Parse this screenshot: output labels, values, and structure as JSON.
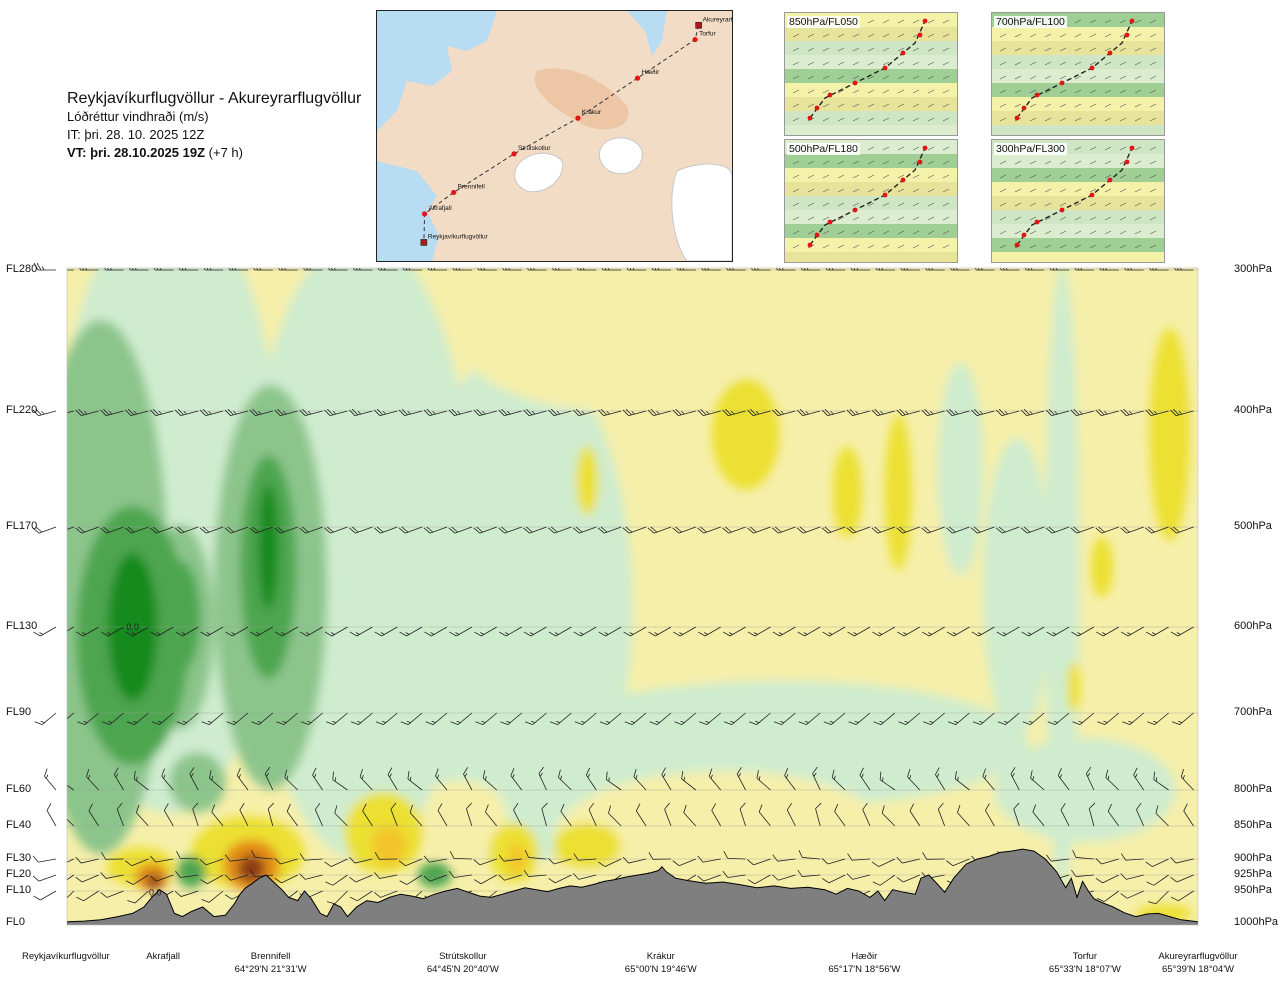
{
  "header": {
    "route": "Reykjavíkurflugvöllur - Akureyrarflugvöllur",
    "parameter": "Lóðréttur vindhraði (m/s)",
    "issue_time": "IT: þri. 28. 10. 2025 12Z",
    "valid_prefix": "VT: þri. 28.10.2025 19Z",
    "valid_suffix": "(+7 h)"
  },
  "route_map": {
    "waypoints": [
      {
        "name": "Akureyrarflugvöllur",
        "lat": 65.65,
        "lon": -18.07
      },
      {
        "name": "Torfur",
        "lat": 65.55,
        "lon": -18.12
      },
      {
        "name": "Hæðir",
        "lat": 65.28,
        "lon": -18.93
      },
      {
        "name": "Krákur",
        "lat": 65.0,
        "lon": -19.77
      },
      {
        "name": "Strútskollur",
        "lat": 64.75,
        "lon": -20.67
      },
      {
        "name": "Brennifell",
        "lat": 64.48,
        "lon": -21.52
      },
      {
        "name": "Akrafjall",
        "lat": 64.33,
        "lon": -21.93
      },
      {
        "name": "Reykjavíkurflugvöllur",
        "lat": 64.13,
        "lon": -21.94
      }
    ]
  },
  "level_maps": [
    {
      "label": "850hPa/FL050"
    },
    {
      "label": "700hPa/FL100"
    },
    {
      "label": "500hPa/FL180"
    },
    {
      "label": "300hPa/FL300"
    }
  ],
  "colors": {
    "strong_down": "#178a1f",
    "mod_down": "#4da64f",
    "weak_down": "#8cc58c",
    "faint_down": "#cfeccf",
    "neutral": "#ffffff",
    "faint_up": "#f6efaa",
    "weak_up": "#ece032",
    "mod_up": "#f3c52a",
    "strong_up": "#e38d19",
    "very_strong_up": "#8c3a12",
    "terrain": "#7f7f7f",
    "terrain_edge": "#000000",
    "barb": "#222222"
  },
  "chart_data": {
    "type": "heatmap",
    "title": "Lóðréttur vindhraði (m/s)",
    "xlabel": "",
    "ylabel": "",
    "flight_levels": [
      {
        "fl": "FL280",
        "hpa": "300hPa",
        "p": 300
      },
      {
        "fl": "FL220",
        "hpa": "400hPa",
        "p": 400
      },
      {
        "fl": "FL170",
        "hpa": "500hPa",
        "p": 500
      },
      {
        "fl": "FL130",
        "hpa": "600hPa",
        "p": 600
      },
      {
        "fl": "FL90",
        "hpa": "700hPa",
        "p": 700
      },
      {
        "fl": "FL60",
        "hpa": "800hPa",
        "p": 800
      },
      {
        "fl": "FL40",
        "hpa": "850hPa",
        "p": 850
      },
      {
        "fl": "FL30",
        "hpa": "900hPa",
        "p": 900
      },
      {
        "fl": "FL20",
        "hpa": "925hPa",
        "p": 925
      },
      {
        "fl": "FL10",
        "hpa": "950hPa",
        "p": 950
      },
      {
        "fl": "FL0",
        "hpa": "1000hPa",
        "p": 1000
      }
    ],
    "x_range": [
      0,
      100
    ],
    "stations": [
      {
        "name": "Reykjavíkurflugvöllur",
        "x": 0,
        "coord": ""
      },
      {
        "name": "Akrafjall",
        "x": 8.5,
        "coord": ""
      },
      {
        "name": "Brennifell",
        "x": 18,
        "coord": "64°29'N 21°31'W"
      },
      {
        "name": "Strútskollur",
        "x": 35,
        "coord": "64°45'N 20°40'W"
      },
      {
        "name": "Krákur",
        "x": 52.5,
        "coord": "65°00'N 19°46'W"
      },
      {
        "name": "Hæðir",
        "x": 70.5,
        "coord": "65°17'N 18°56'W"
      },
      {
        "name": "Torfur",
        "x": 90,
        "coord": "65°33'N 18°07'W"
      },
      {
        "name": "Akureyrarflugvöllur",
        "x": 100,
        "coord": "65°39'N 18°04'W"
      }
    ],
    "value_labels": [
      {
        "text": "0.0",
        "x": 5.8,
        "p": 600
      },
      {
        "text": "0.0",
        "x": 7.8,
        "p": 952
      }
    ],
    "terrain_hpa": [
      [
        0,
        998
      ],
      [
        1.5,
        997
      ],
      [
        3,
        995
      ],
      [
        4.5,
        990
      ],
      [
        5.8,
        985
      ],
      [
        6.8,
        975
      ],
      [
        7.6,
        958
      ],
      [
        8.2,
        948
      ],
      [
        8.8,
        955
      ],
      [
        9.5,
        985
      ],
      [
        10.2,
        990
      ],
      [
        11,
        982
      ],
      [
        12,
        975
      ],
      [
        13,
        990
      ],
      [
        14,
        988
      ],
      [
        14.8,
        970
      ],
      [
        15.3,
        955
      ],
      [
        15.8,
        945
      ],
      [
        16.4,
        938
      ],
      [
        17,
        930
      ],
      [
        17.6,
        925
      ],
      [
        18.2,
        935
      ],
      [
        19,
        948
      ],
      [
        19.6,
        960
      ],
      [
        20.4,
        965
      ],
      [
        21,
        950
      ],
      [
        21.6,
        962
      ],
      [
        22.4,
        985
      ],
      [
        23,
        990
      ],
      [
        23.6,
        970
      ],
      [
        24.2,
        975
      ],
      [
        24.8,
        990
      ],
      [
        25.6,
        975
      ],
      [
        26.5,
        965
      ],
      [
        27.5,
        968
      ],
      [
        28.5,
        960
      ],
      [
        29.5,
        955
      ],
      [
        30.5,
        958
      ],
      [
        31.5,
        962
      ],
      [
        32.5,
        955
      ],
      [
        33.5,
        950
      ],
      [
        34.5,
        946
      ],
      [
        35.5,
        952
      ],
      [
        36.5,
        958
      ],
      [
        37.5,
        960
      ],
      [
        38.5,
        955
      ],
      [
        39.5,
        950
      ],
      [
        40.5,
        945
      ],
      [
        41.5,
        948
      ],
      [
        42.5,
        951
      ],
      [
        43.5,
        946
      ],
      [
        44.5,
        942
      ],
      [
        45.5,
        944
      ],
      [
        46.5,
        940
      ],
      [
        47.5,
        935
      ],
      [
        48.5,
        932
      ],
      [
        49.5,
        928
      ],
      [
        50.5,
        925
      ],
      [
        51.5,
        922
      ],
      [
        52.3,
        918
      ],
      [
        52.6,
        912
      ],
      [
        53,
        920
      ],
      [
        53.8,
        930
      ],
      [
        55,
        934
      ],
      [
        56.5,
        938
      ],
      [
        58,
        936
      ],
      [
        59.5,
        940
      ],
      [
        61,
        945
      ],
      [
        62.5,
        942
      ],
      [
        64,
        946
      ],
      [
        65.5,
        944
      ],
      [
        67,
        948
      ],
      [
        68,
        955
      ],
      [
        69,
        946
      ],
      [
        70,
        950
      ],
      [
        71,
        960
      ],
      [
        71.7,
        950
      ],
      [
        72.3,
        965
      ],
      [
        73,
        948
      ],
      [
        74,
        952
      ],
      [
        75,
        955
      ],
      [
        75.5,
        930
      ],
      [
        76.2,
        925
      ],
      [
        77,
        940
      ],
      [
        77.6,
        952
      ],
      [
        78.4,
        930
      ],
      [
        79.5,
        908
      ],
      [
        80.5,
        900
      ],
      [
        81.5,
        896
      ],
      [
        82.5,
        890
      ],
      [
        83.5,
        888
      ],
      [
        84.5,
        885
      ],
      [
        85.5,
        888
      ],
      [
        86.5,
        900
      ],
      [
        87.5,
        920
      ],
      [
        88.3,
        945
      ],
      [
        88.8,
        930
      ],
      [
        89.3,
        960
      ],
      [
        89.8,
        935
      ],
      [
        90.3,
        950
      ],
      [
        90.8,
        962
      ],
      [
        91.5,
        968
      ],
      [
        92.5,
        975
      ],
      [
        93.5,
        984
      ],
      [
        94.5,
        990
      ],
      [
        95.5,
        986
      ],
      [
        96.5,
        985
      ],
      [
        97.5,
        990
      ],
      [
        98.5,
        995
      ],
      [
        100,
        998
      ]
    ],
    "vertical_velocity_blobs": [
      {
        "x": 5.8,
        "p": 600,
        "rx": 2.2,
        "rp": 80,
        "v": -3
      },
      {
        "x": 5.8,
        "p": 610,
        "rx": 5,
        "rp": 140,
        "v": -2
      },
      {
        "x": 3,
        "p": 560,
        "rx": 6,
        "rp": 260,
        "v": -1
      },
      {
        "x": 10,
        "p": 590,
        "rx": 1.8,
        "rp": 60,
        "v": -2
      },
      {
        "x": 10,
        "p": 600,
        "rx": 3,
        "rp": 110,
        "v": -1
      },
      {
        "x": 17.8,
        "p": 520,
        "rx": 0.9,
        "rp": 60,
        "v": -3
      },
      {
        "x": 17.8,
        "p": 540,
        "rx": 2.5,
        "rp": 110,
        "v": -2
      },
      {
        "x": 18,
        "p": 560,
        "rx": 5,
        "rp": 200,
        "v": -1
      },
      {
        "x": 9,
        "p": 480,
        "rx": 10,
        "rp": 360,
        "v": -0.5
      },
      {
        "x": 26,
        "p": 520,
        "rx": 10,
        "rp": 330,
        "v": -0.5
      },
      {
        "x": 40,
        "p": 580,
        "rx": 10,
        "rp": 260,
        "v": -0.4
      },
      {
        "x": 63,
        "p": 740,
        "rx": 22,
        "rp": 80,
        "v": -0.4
      },
      {
        "x": 48,
        "p": 340,
        "rx": 14,
        "rp": 60,
        "v": 0.4
      },
      {
        "x": 60,
        "p": 420,
        "rx": 3,
        "rp": 45,
        "v": 1
      },
      {
        "x": 46,
        "p": 460,
        "rx": 1,
        "rp": 30,
        "v": 1
      },
      {
        "x": 69,
        "p": 470,
        "rx": 1.3,
        "rp": 40,
        "v": 1
      },
      {
        "x": 73.5,
        "p": 470,
        "rx": 1.2,
        "rp": 70,
        "v": 1
      },
      {
        "x": 91.5,
        "p": 540,
        "rx": 1,
        "rp": 30,
        "v": 1
      },
      {
        "x": 97.5,
        "p": 420,
        "rx": 1.8,
        "rp": 85,
        "v": 1
      },
      {
        "x": 89,
        "p": 670,
        "rx": 0.6,
        "rp": 30,
        "v": 1
      },
      {
        "x": 79,
        "p": 450,
        "rx": 2,
        "rp": 90,
        "v": -0.4
      },
      {
        "x": 84,
        "p": 560,
        "rx": 3,
        "rp": 150,
        "v": -0.4
      },
      {
        "x": 88,
        "p": 550,
        "rx": 1.5,
        "rp": 300,
        "v": -0.4
      },
      {
        "x": 6.5,
        "p": 912,
        "rx": 3,
        "rp": 30,
        "v": 1
      },
      {
        "x": 7.5,
        "p": 928,
        "rx": 1.5,
        "rp": 22,
        "v": 3
      },
      {
        "x": 7.7,
        "p": 935,
        "rx": 0.7,
        "rp": 12,
        "v": 4
      },
      {
        "x": 11,
        "p": 920,
        "rx": 1.3,
        "rp": 25,
        "v": -2
      },
      {
        "x": 16,
        "p": 890,
        "rx": 5,
        "rp": 55,
        "v": 1
      },
      {
        "x": 16.3,
        "p": 910,
        "rx": 2.5,
        "rp": 40,
        "v": 3
      },
      {
        "x": 16.3,
        "p": 915,
        "rx": 1.2,
        "rp": 22,
        "v": 4
      },
      {
        "x": 11.5,
        "p": 790,
        "rx": 2.5,
        "rp": 40,
        "v": -1
      },
      {
        "x": 28,
        "p": 860,
        "rx": 3.5,
        "rp": 60,
        "v": 1
      },
      {
        "x": 28.5,
        "p": 880,
        "rx": 1.5,
        "rp": 30,
        "v": 2
      },
      {
        "x": 32.5,
        "p": 925,
        "rx": 1.5,
        "rp": 20,
        "v": -2
      },
      {
        "x": 39.5,
        "p": 890,
        "rx": 2.2,
        "rp": 45,
        "v": 1
      },
      {
        "x": 39.8,
        "p": 900,
        "rx": 0.8,
        "rp": 25,
        "v": 2
      },
      {
        "x": 35,
        "p": 840,
        "rx": 4,
        "rp": 55,
        "v": 0.4
      },
      {
        "x": 46,
        "p": 880,
        "rx": 3,
        "rp": 35,
        "v": 0.6
      },
      {
        "x": 58,
        "p": 870,
        "rx": 15,
        "rp": 100,
        "v": 0.4
      },
      {
        "x": 90,
        "p": 800,
        "rx": 8,
        "rp": 70,
        "v": -0.4
      },
      {
        "x": 97,
        "p": 985,
        "rx": 2.5,
        "rp": 14,
        "v": 1
      }
    ],
    "wind_barbs": {
      "levels_hpa": [
        300,
        400,
        500,
        600,
        700,
        800,
        850,
        900,
        925,
        950
      ],
      "spacing": 2.2,
      "direction_deg": [
        270,
        255,
        250,
        240,
        230,
        320,
        330,
        260,
        250,
        240
      ],
      "speed_kt": [
        25,
        25,
        20,
        15,
        15,
        15,
        10,
        10,
        10,
        10
      ]
    }
  }
}
